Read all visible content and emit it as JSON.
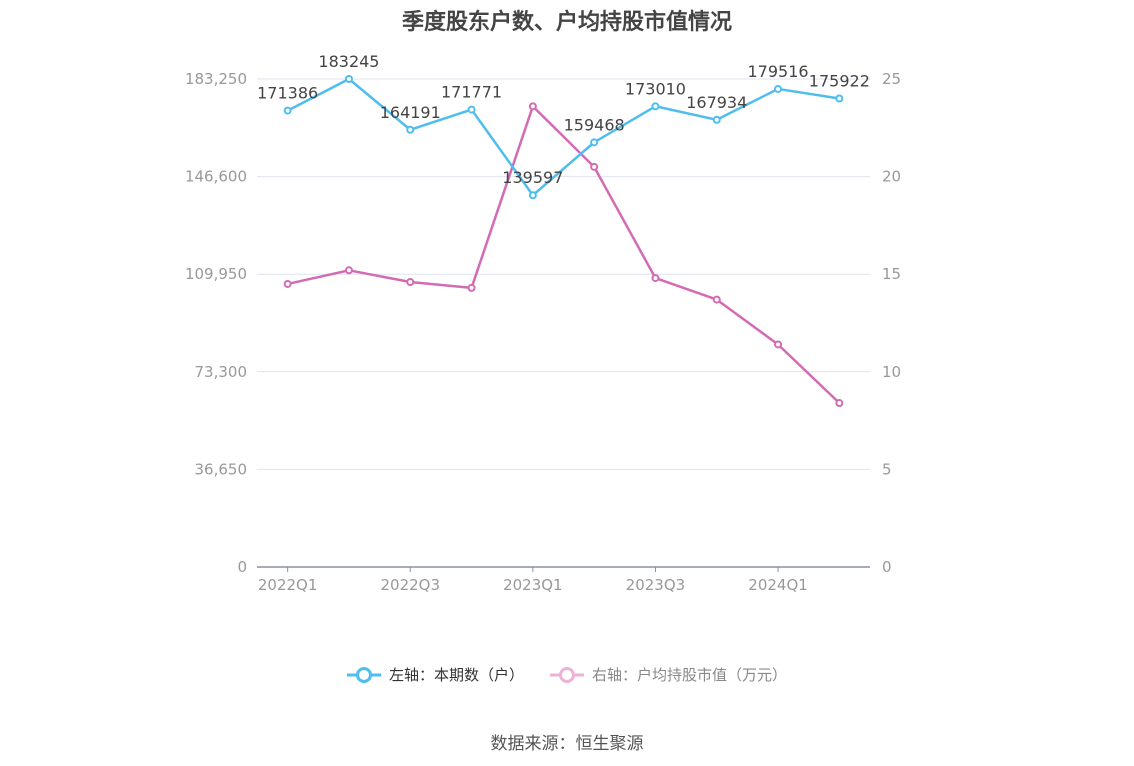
{
  "chart_data": {
    "type": "line",
    "title": "季度股东户数、户均持股市值情况",
    "categories": [
      "2022Q1",
      "2022Q2",
      "2022Q3",
      "2022Q4",
      "2023Q1",
      "2023Q2",
      "2023Q3",
      "2023Q4",
      "2024Q1",
      "2024Q2"
    ],
    "x_tick_labels": [
      "2022Q1",
      "2022Q3",
      "2023Q1",
      "2023Q3",
      "2024Q1"
    ],
    "left_axis": {
      "ticks": [
        "0",
        "36,650",
        "73,300",
        "109,950",
        "146,600",
        "183,250"
      ],
      "ylim": [
        0,
        183250
      ]
    },
    "right_axis": {
      "ticks": [
        "0",
        "5",
        "10",
        "15",
        "20",
        "25"
      ],
      "ylim": [
        0,
        25
      ]
    },
    "series": [
      {
        "name": "左轴：本期数（户）",
        "axis": "left",
        "color": "#4fbdee",
        "values": [
          171386,
          183245,
          164191,
          171771,
          139597,
          159468,
          173010,
          167934,
          179516,
          175922
        ],
        "labels": [
          "171386",
          "183245",
          "164191",
          "171771",
          "139597",
          "159468",
          "173010",
          "167934",
          "179516",
          "175922"
        ]
      },
      {
        "name": "右轴：户均持股市值（万元）",
        "axis": "right",
        "color": "#d36bb4",
        "values": [
          14.5,
          15.2,
          14.6,
          14.3,
          23.6,
          20.5,
          14.8,
          13.7,
          11.4,
          8.4
        ]
      }
    ],
    "grid": true,
    "legend_position": "bottom"
  },
  "source": "数据来源：恒生聚源"
}
